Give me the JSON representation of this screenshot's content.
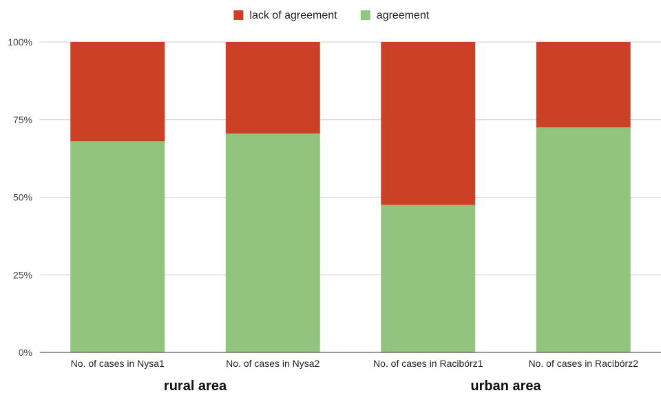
{
  "chart_data": {
    "type": "bar",
    "stacked": true,
    "normalized": true,
    "categories": [
      "No. of cases in Nysa1",
      "No. of cases in Nysa2",
      "No. of cases in Racibórz1",
      "No. of cases in Racibórz2"
    ],
    "series": [
      {
        "name": "agreement",
        "color": "#93c47d",
        "values": [
          68,
          70.5,
          47.5,
          72.5
        ]
      },
      {
        "name": "lack of agreement",
        "color": "#cc4125",
        "values": [
          32,
          29.5,
          52.5,
          27.5
        ]
      }
    ],
    "legend_order": [
      "lack of agreement",
      "agreement"
    ],
    "legend_position": "top-center",
    "y_ticks": [
      "0%",
      "25%",
      "50%",
      "75%",
      "100%"
    ],
    "y_tick_values": [
      0,
      25,
      50,
      75,
      100
    ],
    "ylim": [
      0,
      100
    ],
    "grid": true,
    "groups": [
      {
        "label": "rural area",
        "categories": [
          0,
          1
        ]
      },
      {
        "label": "urban area",
        "categories": [
          2,
          3
        ]
      }
    ]
  }
}
